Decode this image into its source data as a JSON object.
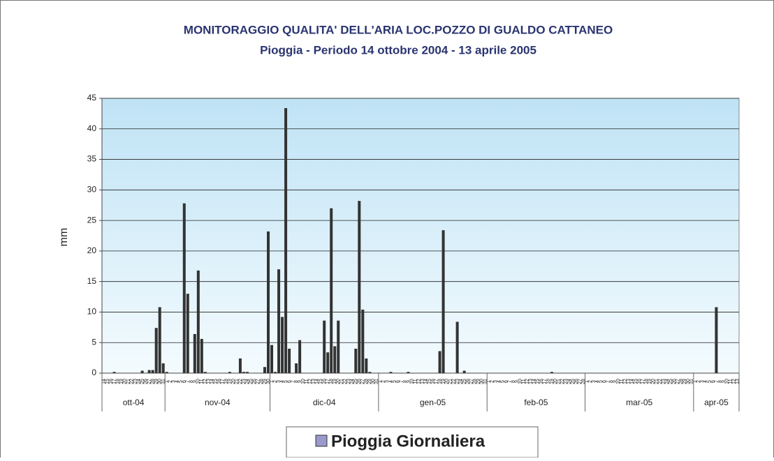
{
  "chart_data": {
    "type": "bar",
    "title": "MONITORAGGIO QUALITA' DELL'ARIA LOC.POZZO DI GUALDO CATTANEO",
    "subtitle": "Pioggia - Periodo 14 ottobre 2004 - 13 aprile 2005",
    "y_label": "mm",
    "categories": [
      14,
      15,
      16,
      17,
      18,
      19,
      20,
      21,
      22,
      23,
      24,
      25,
      26,
      27,
      28,
      29,
      30,
      31,
      1,
      2,
      3,
      4,
      5,
      6,
      7,
      8,
      9,
      10,
      11,
      12,
      13,
      14,
      15,
      16,
      17,
      18,
      19,
      20,
      21,
      22,
      23,
      24,
      25,
      26,
      27,
      28,
      29,
      30,
      1,
      2,
      3,
      4,
      5,
      6,
      7,
      8,
      9,
      10,
      11,
      12,
      13,
      14,
      15,
      16,
      17,
      18,
      19,
      20,
      21,
      22,
      23,
      24,
      25,
      26,
      27,
      28,
      29,
      30,
      31,
      1,
      2,
      3,
      4,
      5,
      6,
      7,
      8,
      9,
      10,
      11,
      12,
      13,
      14,
      15,
      16,
      17,
      18,
      19,
      20,
      21,
      22,
      23,
      24,
      25,
      26,
      27,
      28,
      29,
      30,
      31,
      1,
      2,
      3,
      4,
      5,
      6,
      7,
      8,
      9,
      10,
      11,
      12,
      13,
      14,
      15,
      16,
      17,
      18,
      19,
      20,
      21,
      22,
      23,
      24,
      25,
      26,
      27,
      28,
      1,
      2,
      3,
      4,
      5,
      6,
      7,
      8,
      9,
      10,
      11,
      12,
      13,
      14,
      15,
      16,
      17,
      18,
      19,
      20,
      21,
      22,
      23,
      24,
      25,
      26,
      27,
      28,
      29,
      30,
      31,
      1,
      2,
      3,
      4,
      5,
      6,
      7,
      8,
      9,
      10,
      11,
      12,
      13
    ],
    "groups": [
      {
        "label": "ott-04",
        "count": 18
      },
      {
        "label": "nov-04",
        "count": 30
      },
      {
        "label": "dic-04",
        "count": 31
      },
      {
        "label": "gen-05",
        "count": 31
      },
      {
        "label": "feb-05",
        "count": 28
      },
      {
        "label": "mar-05",
        "count": 31
      },
      {
        "label": "apr-05",
        "count": 13
      }
    ],
    "series": [
      {
        "name": "Pioggia Giornaliera",
        "color": "#333333",
        "legend_color": "#9999cc",
        "values": [
          0,
          0,
          0,
          0.2,
          0,
          0,
          0,
          0,
          0,
          0,
          0,
          0.4,
          0,
          0.5,
          0.5,
          7.4,
          10.8,
          1.6,
          0.2,
          0,
          0,
          0,
          0,
          27.8,
          13,
          0,
          6.4,
          16.8,
          5.6,
          0.2,
          0,
          0,
          0,
          0,
          0,
          0,
          0.2,
          0,
          0,
          2.4,
          0.2,
          0.2,
          0,
          0,
          0,
          0,
          1,
          23.2,
          4.6,
          0.2,
          17,
          9.2,
          43.4,
          4,
          0,
          1.6,
          5.4,
          0,
          0,
          0,
          0,
          0,
          0,
          8.6,
          3.4,
          27,
          4.4,
          8.6,
          0,
          0,
          0,
          0,
          4,
          28.2,
          10.4,
          2.4,
          0.2,
          0,
          0,
          0,
          0,
          0,
          0.2,
          0,
          0,
          0,
          0,
          0.2,
          0,
          0,
          0,
          0,
          0,
          0,
          0,
          0,
          3.6,
          23.4,
          0,
          0,
          0,
          8.4,
          0,
          0.4,
          0,
          0,
          0,
          0,
          0,
          0,
          0,
          0,
          0,
          0,
          0,
          0,
          0,
          0,
          0,
          0,
          0,
          0,
          0,
          0,
          0,
          0,
          0,
          0,
          0.2,
          0,
          0,
          0,
          0,
          0,
          0,
          0,
          0,
          0,
          0,
          0,
          0,
          0,
          0,
          0,
          0,
          0,
          0,
          0,
          0,
          0,
          0,
          0,
          0,
          0,
          0,
          0,
          0,
          0,
          0,
          0,
          0,
          0,
          0,
          0,
          0,
          0,
          0,
          0,
          0,
          0,
          0,
          0,
          0,
          0,
          0,
          10.8,
          0,
          0,
          0,
          0,
          0,
          0
        ]
      }
    ],
    "ylim": [
      0,
      45
    ],
    "yticks": [
      0,
      5,
      10,
      15,
      20,
      25,
      30,
      35,
      40,
      45
    ],
    "grid": true
  }
}
